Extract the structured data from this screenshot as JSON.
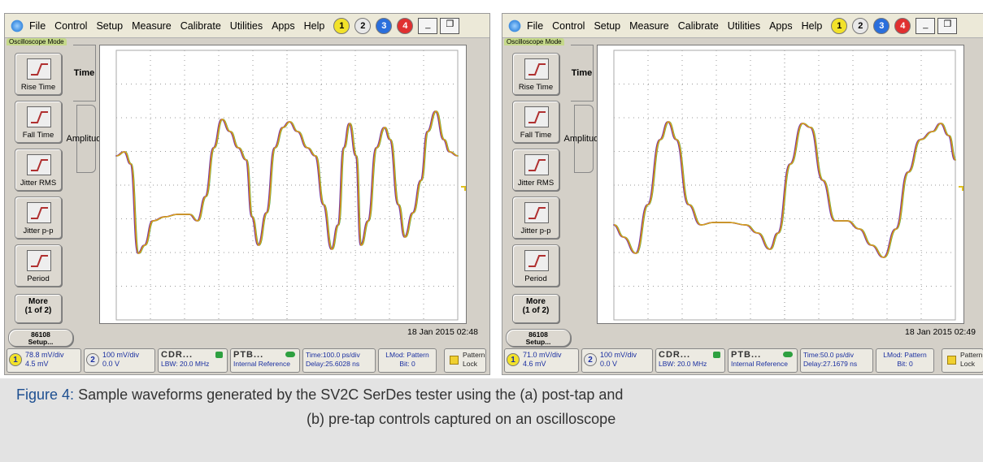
{
  "panels": [
    {
      "menu": [
        "File",
        "Control",
        "Setup",
        "Measure",
        "Calibrate",
        "Utilities",
        "Apps",
        "Help"
      ],
      "channels": [
        "1",
        "2",
        "3",
        "4"
      ],
      "mode": "Oscilloscope Mode",
      "tabs": [
        "Time",
        "Amplitude"
      ],
      "buttons": [
        "Rise Time",
        "Fall Time",
        "Jitter RMS",
        "Jitter p-p",
        "Period"
      ],
      "more": [
        "More",
        "(1 of 2)"
      ],
      "setup": [
        "86108",
        "Setup..."
      ],
      "timestamp": "18 Jan 2015  02:48",
      "status": {
        "ch1": {
          "number": "1",
          "lines": [
            "78.8 mV/div",
            "4.5 mV"
          ]
        },
        "ch2": {
          "number": "2",
          "lines": [
            "100 mV/div",
            "0.0 V"
          ]
        },
        "cdr": [
          "CDR...",
          "LBW: 20.0 MHz"
        ],
        "ptb": [
          "PTB...",
          "Internal Reference"
        ],
        "time": [
          "Time:100.0 ps/div",
          "Delay:25.6028 ns"
        ],
        "lmod": [
          "LMod: Pattern",
          "Bit: 0"
        ],
        "lock": [
          "Pattern",
          "Lock"
        ]
      }
    },
    {
      "menu": [
        "File",
        "Control",
        "Setup",
        "Measure",
        "Calibrate",
        "Utilities",
        "Apps",
        "Help"
      ],
      "channels": [
        "1",
        "2",
        "3",
        "4"
      ],
      "mode": "Oscilloscope Mode",
      "tabs": [
        "Time",
        "Amplitude"
      ],
      "buttons": [
        "Rise Time",
        "Fall Time",
        "Jitter RMS",
        "Jitter p-p",
        "Period"
      ],
      "more": [
        "More",
        "(1 of 2)"
      ],
      "setup": [
        "86108",
        "Setup..."
      ],
      "timestamp": "18 Jan 2015  02:49",
      "status": {
        "ch1": {
          "number": "1",
          "lines": [
            "71.0 mV/div",
            "4.6 mV"
          ]
        },
        "ch2": {
          "number": "2",
          "lines": [
            "100 mV/div",
            "0.0 V"
          ]
        },
        "cdr": [
          "CDR...",
          "LBW: 20.0 MHz"
        ],
        "ptb": [
          "PTB...",
          "Internal Reference"
        ],
        "time": [
          "Time:50.0 ps/div",
          "Delay:27.1679 ns"
        ],
        "lmod": [
          "LMod: Pattern",
          "Bit: 0"
        ],
        "lock": [
          "Pattern",
          "Lock"
        ]
      }
    }
  ],
  "caption": {
    "label": "Figure 4:",
    "lines": [
      "Sample waveforms generated by the SV2C SerDes tester using the (a) post-tap and",
      "(b) pre-tap controls captured on an oscilloscope"
    ]
  }
}
